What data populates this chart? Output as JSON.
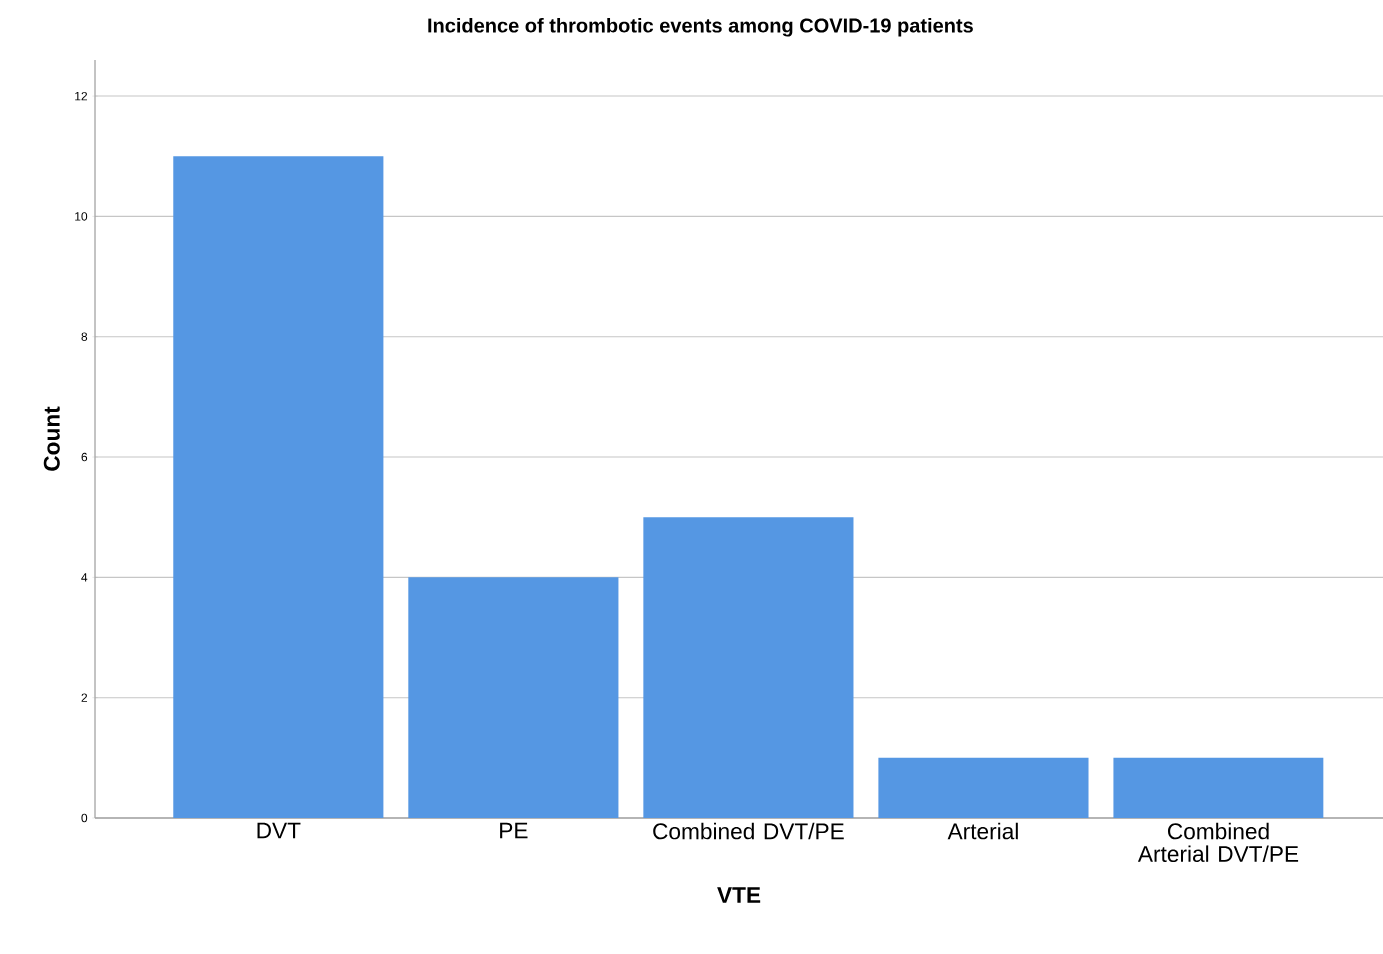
{
  "chart_data": {
    "type": "bar",
    "title": "Incidence of thrombotic events among COVID-19 patients",
    "xlabel": "VTE",
    "ylabel": "Count",
    "categories": [
      "DVT",
      "PE",
      "Combined DVT/PE",
      "Arterial",
      "Combined Arterial DVT/PE"
    ],
    "values": [
      11,
      4,
      5,
      1,
      1
    ],
    "color": "#5597e3",
    "ylim": [
      0,
      12.6
    ],
    "yticks": [
      0,
      2,
      4,
      6,
      8,
      10,
      12
    ],
    "grid": "y"
  }
}
